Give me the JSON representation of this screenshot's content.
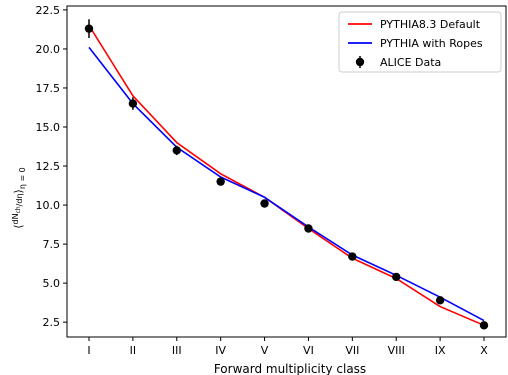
{
  "chart_data": {
    "type": "line",
    "title": "",
    "xlabel": "Forward multiplicity class",
    "ylabel": "",
    "categories": [
      "I",
      "II",
      "III",
      "IV",
      "V",
      "VI",
      "VII",
      "VIII",
      "IX",
      "X"
    ],
    "ylim": [
      1.55,
      22.75
    ],
    "yticks": [
      2.5,
      5.0,
      7.5,
      10.0,
      12.5,
      15.0,
      17.5,
      20.0,
      22.5
    ],
    "ytick_labels": [
      "2.5",
      "5.0",
      "7.5",
      "10.0",
      "12.5",
      "15.0",
      "17.5",
      "20.0",
      "22.5"
    ],
    "grid": false,
    "legend_position": "top-right",
    "series": [
      {
        "name": "PYTHIA8.3 Default",
        "kind": "line",
        "color": "#ff0000",
        "values": [
          21.5,
          17.0,
          14.0,
          12.0,
          10.5,
          8.5,
          6.6,
          5.3,
          3.5,
          2.3
        ]
      },
      {
        "name": "PYTHIA with Ropes",
        "kind": "line",
        "color": "#0000ff",
        "values": [
          20.1,
          16.5,
          13.7,
          11.8,
          10.5,
          8.6,
          6.8,
          5.5,
          4.1,
          2.6
        ]
      },
      {
        "name": "ALICE Data",
        "kind": "errorbar",
        "color": "#000000",
        "values": [
          21.3,
          16.5,
          13.5,
          11.5,
          10.1,
          8.5,
          6.7,
          5.4,
          3.9,
          2.3
        ],
        "errors": [
          0.6,
          0.4,
          0.3,
          0.2,
          0.2,
          0.15,
          0.15,
          0.12,
          0.1,
          0.08
        ]
      }
    ]
  }
}
